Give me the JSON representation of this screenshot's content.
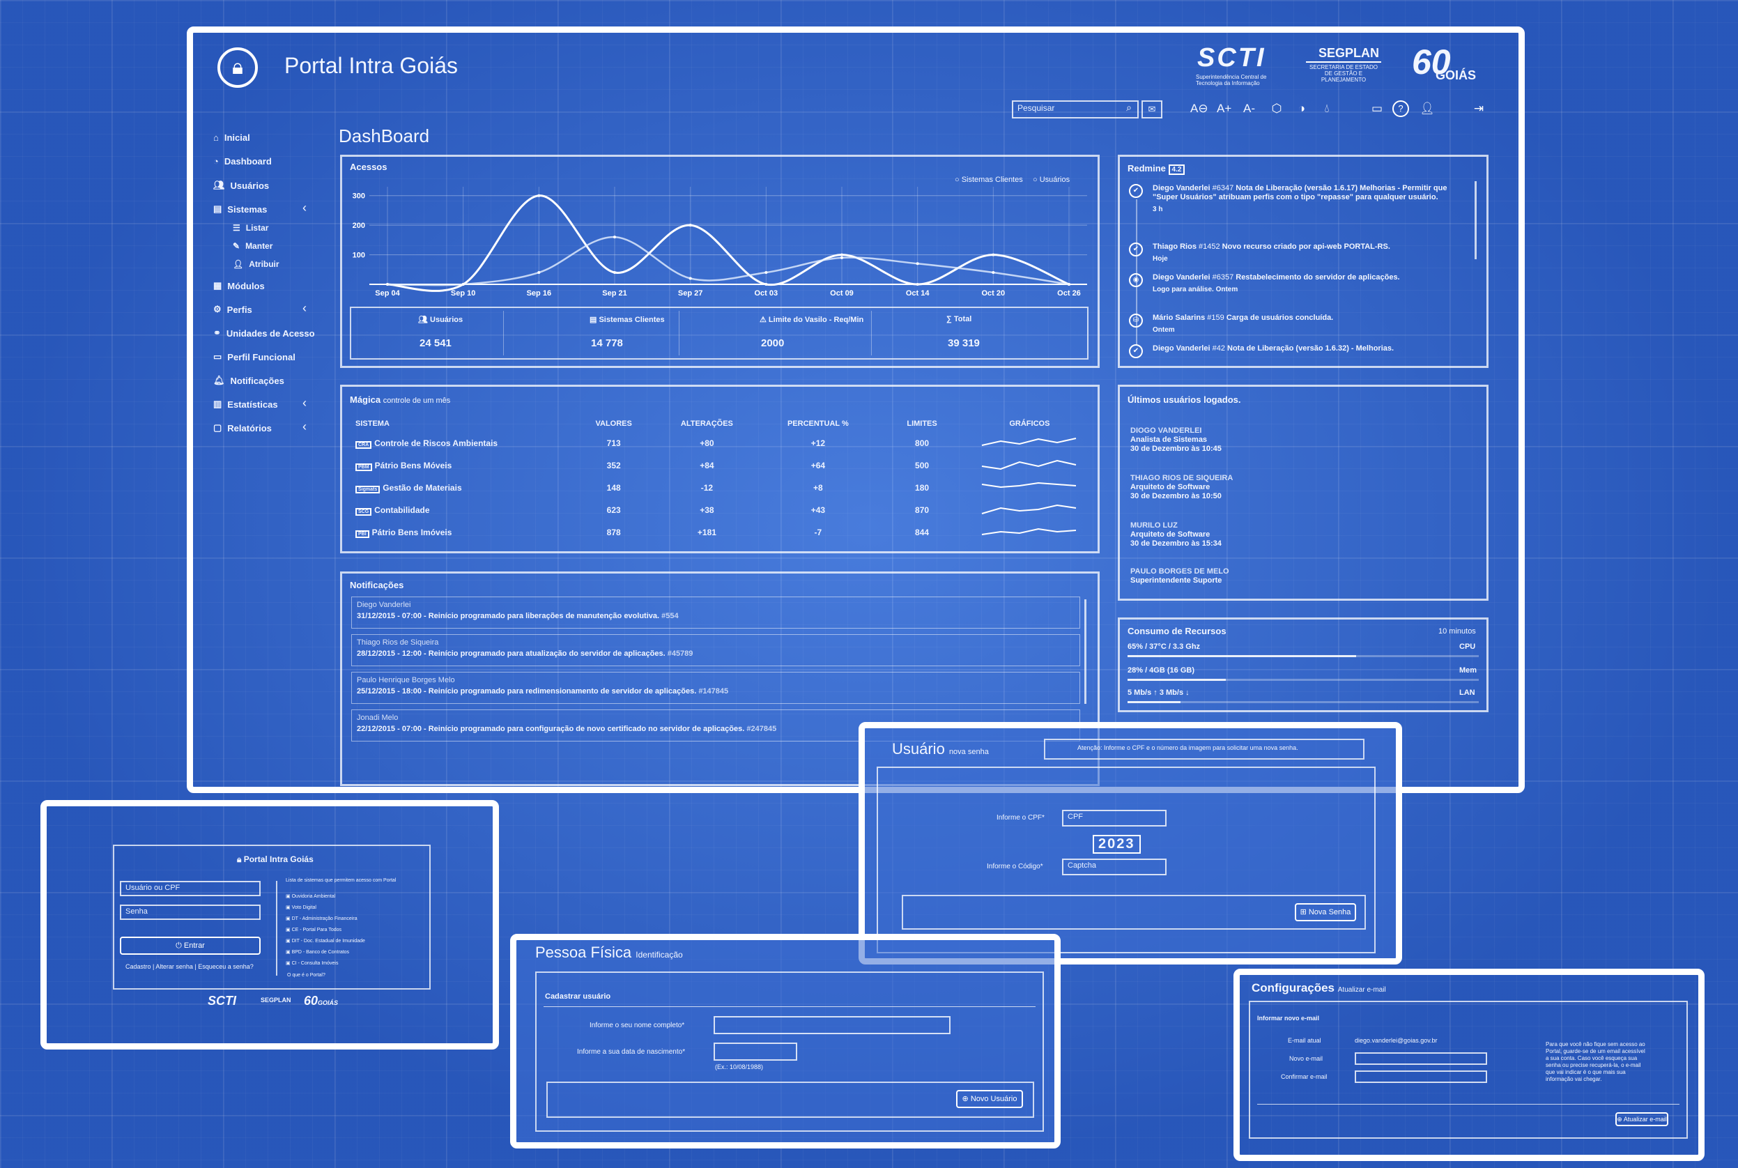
{
  "app": {
    "title": "Portal Intra Goiás",
    "logos": [
      "SCTI",
      "SEGPLAN",
      "GOIÁS"
    ],
    "logo_taglines": {
      "scti": "Superintendência Central de Tecnologia da Informação",
      "segplan": "SECRETARIA DE ESTADO DE GESTÃO E PLANEJAMENTO"
    },
    "search_placeholder": "Pesquisar"
  },
  "accessibility_labels": [
    "A⊖",
    "A+",
    "A-"
  ],
  "sidebar": {
    "items": [
      {
        "label": "Inicial",
        "icon": "home-icon"
      },
      {
        "label": "Dashboard",
        "icon": "dashboard-icon"
      },
      {
        "label": "Usuários",
        "icon": "users-icon"
      },
      {
        "label": "Sistemas",
        "icon": "window-icon",
        "expanded": true
      },
      {
        "label": "Listar",
        "icon": "list-icon",
        "sub": true
      },
      {
        "label": "Manter",
        "icon": "pencil-icon",
        "sub": true
      },
      {
        "label": "Atribuir",
        "icon": "user-icon",
        "sub": true
      },
      {
        "label": "Módulos",
        "icon": "modules-icon"
      },
      {
        "label": "Perfis",
        "icon": "profile-icon"
      },
      {
        "label": "Unidades de Acesso",
        "icon": "link-icon"
      },
      {
        "label": "Perfil Funcional",
        "icon": "card-icon"
      },
      {
        "label": "Notificações",
        "icon": "bell-icon"
      },
      {
        "label": "Estatísticas",
        "icon": "chart-icon"
      },
      {
        "label": "Relatórios",
        "icon": "folder-icon"
      }
    ]
  },
  "page_title": "DashBoard",
  "acessos": {
    "title": "Acessos",
    "legend": [
      "Sistemas Clientes",
      "Usuários"
    ],
    "chart_data": {
      "type": "line",
      "x": [
        "Sep 04",
        "Sep 10",
        "Sep 16",
        "Sep 21",
        "Sep 27",
        "Oct 03",
        "Oct 09",
        "Oct 14",
        "Oct 20",
        "Oct 26"
      ],
      "ylim": [
        0,
        330
      ],
      "y_ticks": [
        100,
        200,
        300
      ],
      "series": [
        {
          "name": "Sistemas Clientes",
          "values": [
            0,
            0,
            300,
            40,
            200,
            0,
            100,
            0,
            100,
            0
          ]
        },
        {
          "name": "Usuários",
          "values": [
            0,
            0,
            40,
            160,
            20,
            40,
            90,
            70,
            40,
            0
          ]
        }
      ]
    },
    "stats": [
      {
        "icon": "users-icon",
        "label": "Usuários",
        "value": "24 541"
      },
      {
        "icon": "window-icon",
        "label": "Sistemas Clientes",
        "value": "14 778"
      },
      {
        "icon": "warning-icon",
        "label": "Limite do Vasilo - Req/Min",
        "value": "2000"
      },
      {
        "icon": "sum-icon",
        "label": "Total",
        "value": "39 319"
      }
    ]
  },
  "redmine": {
    "title": "Redmine",
    "badge": "4.2",
    "items": [
      {
        "author": "Diego Vanderlei",
        "ref": "#6347",
        "text": "Nota de Liberação (versão 1.6.17) Melhorias - Permitir que \"Super Usuários\" atribuam perfis com o tipo \"repasse\" para qualquer usuário.",
        "time": "3 h"
      },
      {
        "author": "Thiago Rios",
        "ref": "#1452",
        "text": "Novo recurso criado por api-web PORTAL-RS.",
        "time": "Hoje"
      },
      {
        "author": "Diego Vanderlei",
        "ref": "#6357",
        "text": "Restabelecimento do servidor de aplicações.",
        "time": "Logo para análise. Ontem"
      },
      {
        "author": "Mário Salarins",
        "ref": "#159",
        "text": "Carga de usuários concluída.",
        "time": "Ontem"
      },
      {
        "author": "Diego Vanderlei",
        "ref": "#42",
        "text": "Nota de Liberação (versão 1.6.32) - Melhorias.",
        "time": ""
      }
    ]
  },
  "systems": {
    "title": "Mágica",
    "subtitle": "controle de um mês",
    "headers": [
      "SISTEMA",
      "VALORES",
      "ALTERAÇÕES",
      "PERCENTUAL %",
      "LIMITES",
      "GRÁFICOS"
    ],
    "rows": [
      {
        "tag": "CRA",
        "name": "Controle de Riscos Ambientais",
        "valores": "713",
        "alteracoes": "+80",
        "percentual": "+12",
        "limites": "800"
      },
      {
        "tag": "PBM",
        "name": "Pátrio Bens Móveis",
        "valores": "352",
        "alteracoes": "+84",
        "percentual": "+64",
        "limites": "500"
      },
      {
        "tag": "Sigmats",
        "name": "Gestão de Materiais",
        "valores": "148",
        "alteracoes": "-12",
        "percentual": "+8",
        "limites": "180"
      },
      {
        "tag": "SCG",
        "name": "Contabilidade",
        "valores": "623",
        "alteracoes": "+38",
        "percentual": "+43",
        "limites": "870"
      },
      {
        "tag": "PBI",
        "name": "Pátrio Bens Imóveis",
        "valores": "878",
        "alteracoes": "+181",
        "percentual": "-7",
        "limites": "844"
      }
    ]
  },
  "last_users": {
    "title": "Últimos usuários logados.",
    "items": [
      {
        "name": "DIOGO VANDERLEI",
        "role": "Analista de Sistemas",
        "date": "30 de Dezembro às 10:45"
      },
      {
        "name": "THIAGO RIOS DE SIQUEIRA",
        "role": "Arquiteto de Software",
        "date": "30 de Dezembro às 10:50"
      },
      {
        "name": "MURILO LUZ",
        "role": "Arquiteto de Software",
        "date": "30 de Dezembro às 15:34"
      },
      {
        "name": "PAULO BORGES DE MELO",
        "role": "Superintendente Suporte",
        "date": ""
      }
    ]
  },
  "notifications": {
    "title": "Notificações",
    "items": [
      {
        "author": "Diego Vanderlei",
        "text": "31/12/2015 - 07:00 - Reinício programado para liberações de manutenção evolutiva.",
        "ref": "#554"
      },
      {
        "author": "Thiago Rios de Siqueira",
        "text": "28/12/2015 - 12:00 - Reinício programado para atualização do servidor de aplicações.",
        "ref": "#45789"
      },
      {
        "author": "Paulo Henrique Borges Melo",
        "text": "25/12/2015 - 18:00 - Reinício programado para redimensionamento de servidor de aplicações.",
        "ref": "#147845"
      },
      {
        "author": "Jonadi Melo",
        "text": "22/12/2015 - 07:00 - Reinício programado para configuração de novo certificado no servidor de aplicações.",
        "ref": "#247845"
      }
    ]
  },
  "resources": {
    "title": "Consumo de Recursos",
    "interval": "10 minutos",
    "rows": [
      {
        "label": "65% / 37°C / 3.3 Ghz",
        "name": "CPU",
        "level": 0.65
      },
      {
        "label": "28% / 4GB (16 GB)",
        "name": "Mem",
        "level": 0.28
      },
      {
        "label": "5 Mb/s ↑ 3 Mb/s ↓",
        "name": "LAN",
        "level": 0.15
      }
    ]
  },
  "login": {
    "title": "Portal Intra Goiás",
    "user_placeholder": "Usuário ou CPF",
    "password_placeholder": "Senha",
    "enter_button": "Entrar",
    "links": [
      "Cadastro",
      "Alterar senha",
      "Esqueceu a senha?"
    ],
    "system_list_title": "Lista de sistemas que permitem acesso com Portal",
    "systems": [
      "Ouvidoria Ambiental",
      "Voto Digital",
      "DT - Administração Financeira",
      "CE - Portal Para Todos",
      "DIT - Doc. Estadual de Imunidade",
      "BPD - Banco de Contratos",
      "CI - Consulta Imóveis"
    ],
    "help_link": "O que é o Portal?"
  },
  "usuario_form": {
    "title": "Usuário",
    "subtitle": "nova senha",
    "info": "Atenção: Informe o CPF e o número da imagem para solicitar uma nova senha.",
    "cpf_label": "Informe o CPF*",
    "cpf_placeholder": "CPF",
    "captcha": "2023",
    "code_label": "Informe o Código*",
    "code_placeholder": "Captcha",
    "submit": "Nova Senha"
  },
  "pessoa_form": {
    "title": "Pessoa Física",
    "subtitle": "Identificação",
    "section": "Cadastrar usuário",
    "name_label": "Informe o seu nome completo*",
    "birth_label": "Informe a sua data de nascimento*",
    "birth_hint": "(Ex.: 10/08/1988)",
    "submit": "Novo Usuário"
  },
  "config_form": {
    "title": "Configurações",
    "subtitle": "Atualizar e-mail",
    "section": "Informar novo e-mail",
    "current_label": "E-mail atual",
    "current_value": "diego.vanderlei@goias.gov.br",
    "new_label": "Novo e-mail",
    "confirm_label": "Confirmar e-mail",
    "help": "Para que você não fique sem acesso ao Portal, guarde-se de um email acessível a sua conta. Caso você esqueça sua senha ou precise recuperá-la, o e-mail que vai indicar é o que mais sua informação vai chegar.",
    "submit": "Atualizar e-mail"
  }
}
